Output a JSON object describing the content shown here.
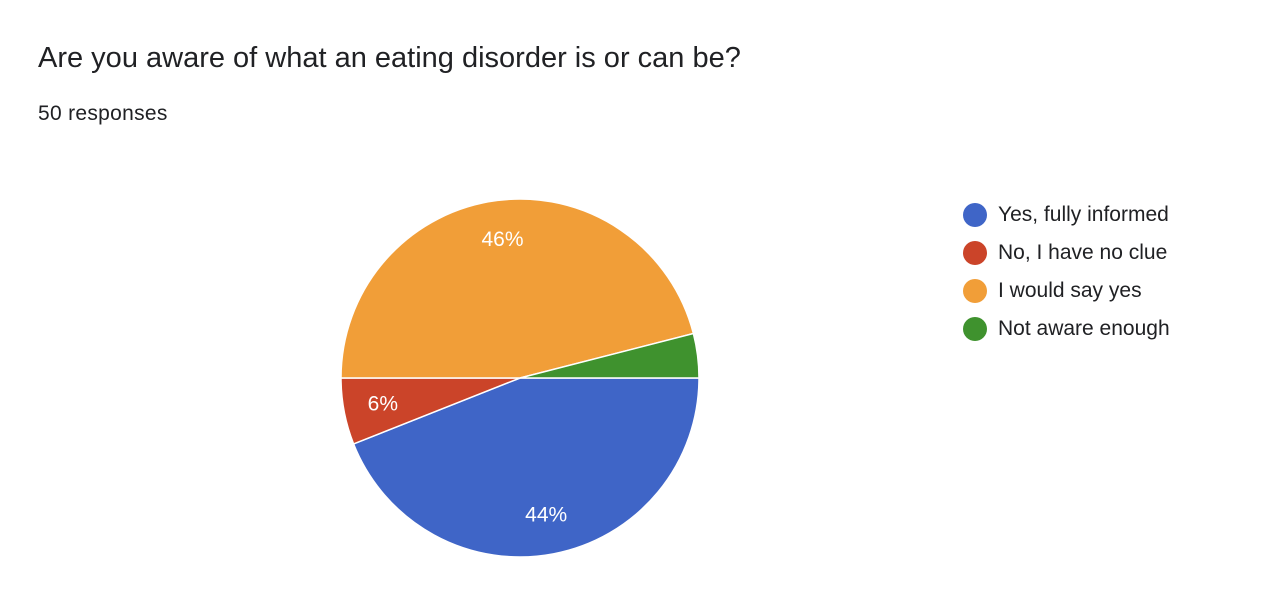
{
  "header": {
    "title": "Are you aware of what an eating disorder is or can be?",
    "responses": "50 responses"
  },
  "chart_data": {
    "type": "pie",
    "categories": [
      "Yes, fully informed",
      "No, I have no clue",
      "I would say yes",
      "Not aware enough"
    ],
    "values": [
      44,
      6,
      46,
      4
    ],
    "data_labels": [
      "44%",
      "6%",
      "46%",
      ""
    ],
    "colors": [
      "#3f65c7",
      "#cb4429",
      "#f19e38",
      "#3f922e"
    ],
    "legend_position": "right"
  }
}
